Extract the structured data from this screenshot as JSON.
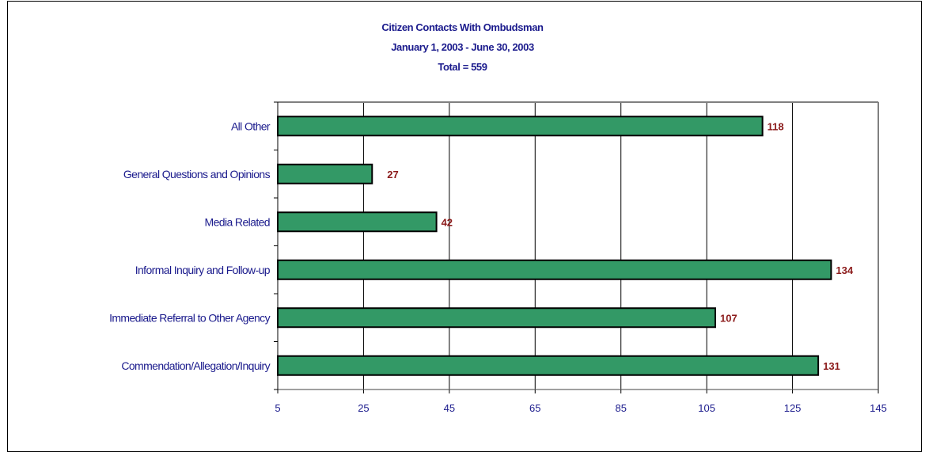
{
  "chart_data": {
    "type": "bar",
    "orientation": "horizontal",
    "title": "Citizen Contacts With Ombudsman",
    "subtitle": "January 1, 2003 - June 30, 2003",
    "subtitle2": "Total = 559",
    "categories": [
      "All Other",
      "General Questions and Opinions",
      "Media Related",
      "Informal Inquiry and Follow-up",
      "Immediate Referral to Other Agency",
      "Commendation/Allegation/Inquiry"
    ],
    "values": [
      118,
      27,
      42,
      134,
      107,
      131
    ],
    "data_labels": [
      "118",
      "27",
      "42",
      "134",
      "107",
      "131"
    ],
    "x_ticks": [
      "5",
      "25",
      "45",
      "65",
      "85",
      "105",
      "125",
      "145"
    ],
    "xlim": [
      5,
      145
    ],
    "grid": true,
    "legend": "none"
  },
  "colors": {
    "bar_fill": "#339966",
    "bar_stroke": "#000000",
    "text": "#1a1a8c",
    "data_label": "#8b1a1a",
    "grid": "#000000",
    "plot_border": "#808080"
  }
}
